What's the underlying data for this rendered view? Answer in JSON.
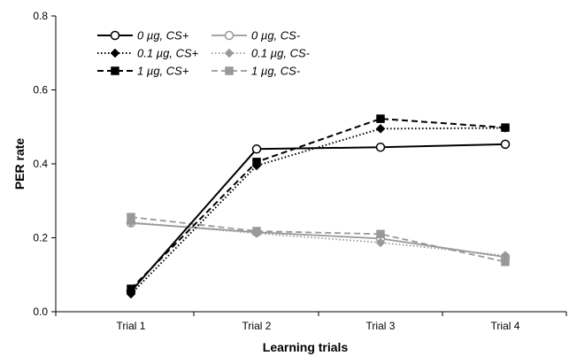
{
  "chart_data": {
    "type": "line",
    "xlabel": "Learning trials",
    "ylabel": "PER rate",
    "categories": [
      "Trial 1",
      "Trial 2",
      "Trial 3",
      "Trial 4"
    ],
    "ylim": [
      0,
      0.8
    ],
    "yticks": [
      "0.0",
      "0.2",
      "0.4",
      "0.6",
      "0.8"
    ],
    "ytick_values": [
      0,
      0.2,
      0.4,
      0.6,
      0.8
    ],
    "grid": false,
    "legend_position": "top-left",
    "series": [
      {
        "name": "0 µg, CS+",
        "values": [
          0.055,
          0.44,
          0.445,
          0.453
        ],
        "color": "#000000",
        "dash": "solid",
        "marker": "circle-open"
      },
      {
        "name": "0 µg, CS-",
        "values": [
          0.24,
          0.215,
          0.198,
          0.148
        ],
        "color": "#999999",
        "dash": "solid",
        "marker": "circle-open"
      },
      {
        "name": "0.1 µg, CS+",
        "values": [
          0.048,
          0.395,
          0.495,
          0.497
        ],
        "color": "#000000",
        "dash": "dotted",
        "marker": "diamond"
      },
      {
        "name": "0.1 µg, CS-",
        "values": [
          0.242,
          0.212,
          0.187,
          0.152
        ],
        "color": "#999999",
        "dash": "dotted",
        "marker": "diamond"
      },
      {
        "name": "1 µg, CS+",
        "values": [
          0.062,
          0.405,
          0.522,
          0.498
        ],
        "color": "#000000",
        "dash": "dashed",
        "marker": "square"
      },
      {
        "name": "1 µg, CS-",
        "values": [
          0.256,
          0.218,
          0.21,
          0.135
        ],
        "color": "#999999",
        "dash": "dashed",
        "marker": "square"
      }
    ]
  }
}
